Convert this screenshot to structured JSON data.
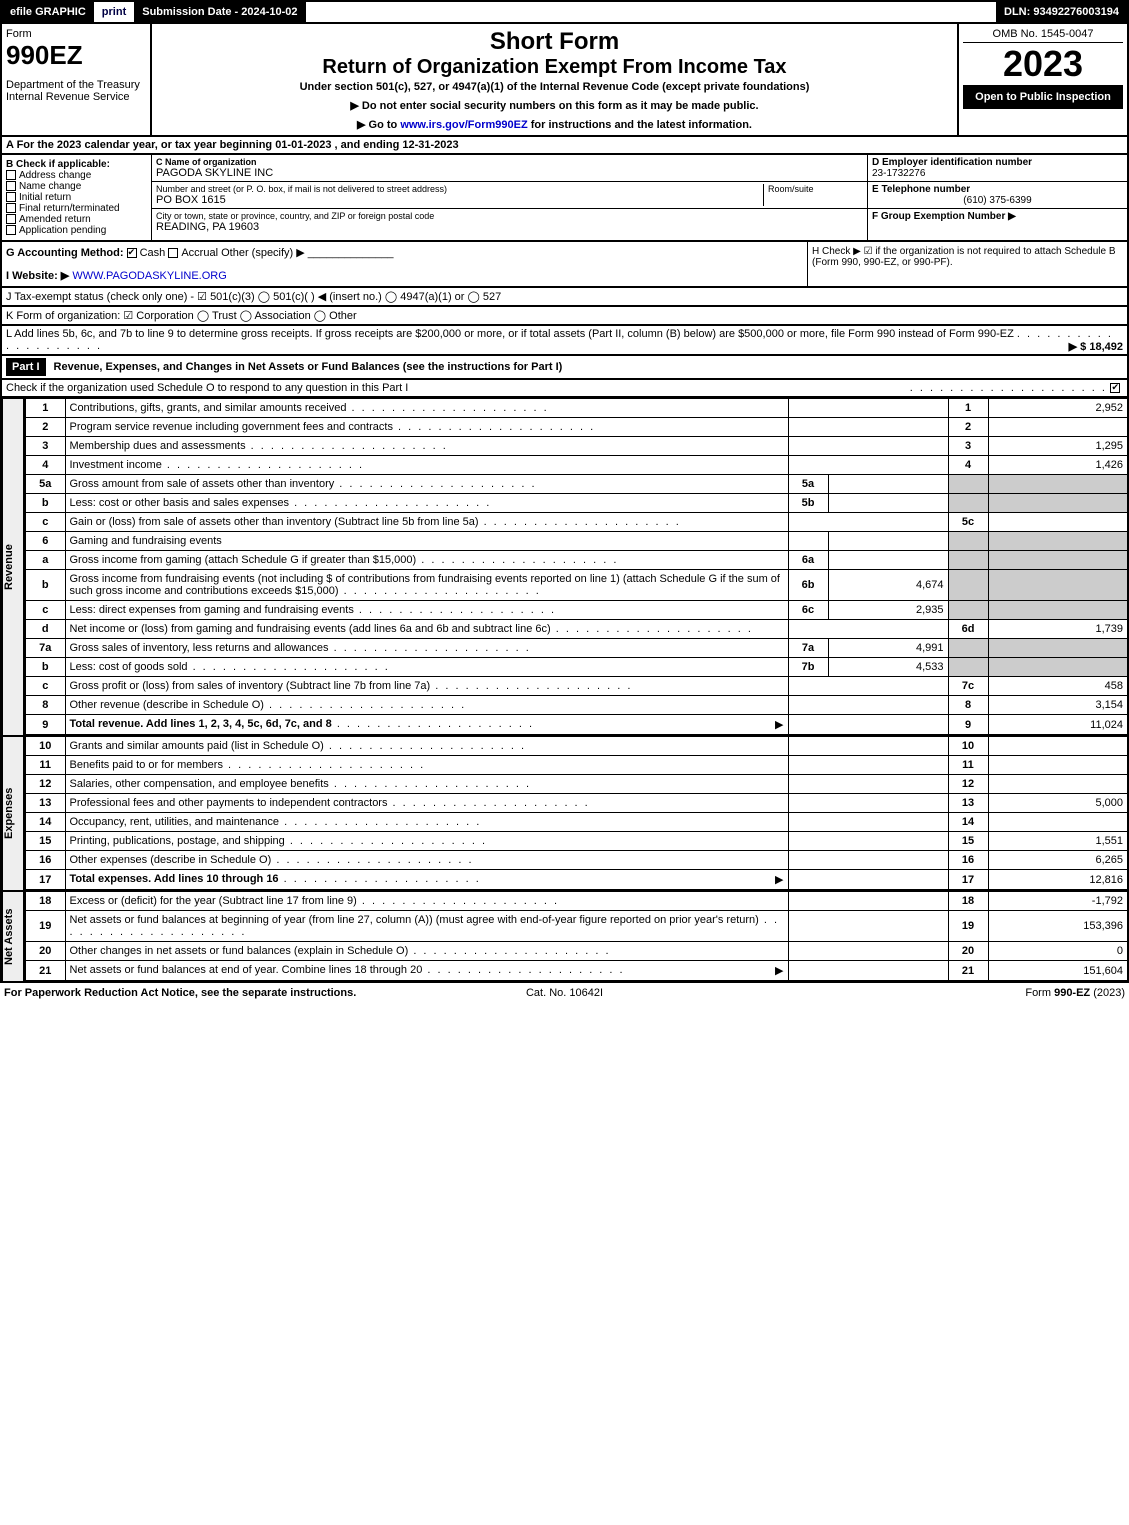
{
  "topbar": {
    "efile": "efile GRAPHIC",
    "print": "print",
    "submission": "Submission Date - 2024-10-02",
    "dln": "DLN: 93492276003194"
  },
  "header": {
    "form": "Form",
    "formNo": "990EZ",
    "dept1": "Department of the Treasury",
    "dept2": "Internal Revenue Service",
    "title1": "Short Form",
    "title2": "Return of Organization Exempt From Income Tax",
    "sub": "Under section 501(c), 527, or 4947(a)(1) of the Internal Revenue Code (except private foundations)",
    "note1": "▶ Do not enter social security numbers on this form as it may be made public.",
    "note2": "▶ Go to www.irs.gov/Form990EZ for instructions and the latest information.",
    "omb": "OMB No. 1545-0047",
    "year": "2023",
    "open": "Open to Public Inspection"
  },
  "sectionA": "A  For the 2023 calendar year, or tax year beginning 01-01-2023 , and ending 12-31-2023",
  "B": {
    "label": "B  Check if applicable:",
    "opts": [
      "Address change",
      "Name change",
      "Initial return",
      "Final return/terminated",
      "Amended return",
      "Application pending"
    ]
  },
  "C": {
    "nameLabel": "C Name of organization",
    "name": "PAGODA SKYLINE INC",
    "addrLabel": "Number and street (or P. O. box, if mail is not delivered to street address)",
    "roomLabel": "Room/suite",
    "addr": "PO BOX 1615",
    "cityLabel": "City or town, state or province, country, and ZIP or foreign postal code",
    "city": "READING, PA  19603"
  },
  "D": {
    "einLabel": "D Employer identification number",
    "ein": "23-1732276",
    "telLabel": "E Telephone number",
    "tel": "(610) 375-6399",
    "grpLabel": "F Group Exemption Number  ▶"
  },
  "G": {
    "label": "G Accounting Method:",
    "cash": "Cash",
    "accrual": "Accrual",
    "other": "Other (specify) ▶"
  },
  "H": "H  Check ▶ ☑ if the organization is not required to attach Schedule B (Form 990, 990-EZ, or 990-PF).",
  "I": "I Website: ▶ WWW.PAGODASKYLINE.ORG",
  "J": "J Tax-exempt status (check only one) - ☑ 501(c)(3)  ◯ 501(c)(  ) ◀ (insert no.)  ◯ 4947(a)(1) or  ◯ 527",
  "K": "K Form of organization:  ☑ Corporation  ◯ Trust  ◯ Association  ◯ Other",
  "L": {
    "text": "L Add lines 5b, 6c, and 7b to line 9 to determine gross receipts. If gross receipts are $200,000 or more, or if total assets (Part II, column (B) below) are $500,000 or more, file Form 990 instead of Form 990-EZ",
    "amount": "▶ $ 18,492"
  },
  "partI": {
    "label": "Part I",
    "title": "Revenue, Expenses, and Changes in Net Assets or Fund Balances (see the instructions for Part I)",
    "check": "Check if the organization used Schedule O to respond to any question in this Part I"
  },
  "sides": {
    "revenue": "Revenue",
    "expenses": "Expenses",
    "netassets": "Net Assets"
  },
  "rows": {
    "1": {
      "n": "1",
      "d": "Contributions, gifts, grants, and similar amounts received",
      "ln": "1",
      "amt": "2,952"
    },
    "2": {
      "n": "2",
      "d": "Program service revenue including government fees and contracts",
      "ln": "2",
      "amt": ""
    },
    "3": {
      "n": "3",
      "d": "Membership dues and assessments",
      "ln": "3",
      "amt": "1,295"
    },
    "4": {
      "n": "4",
      "d": "Investment income",
      "ln": "4",
      "amt": "1,426"
    },
    "5a": {
      "n": "5a",
      "d": "Gross amount from sale of assets other than inventory",
      "sn": "5a",
      "sv": ""
    },
    "5b": {
      "n": "b",
      "d": "Less: cost or other basis and sales expenses",
      "sn": "5b",
      "sv": ""
    },
    "5c": {
      "n": "c",
      "d": "Gain or (loss) from sale of assets other than inventory (Subtract line 5b from line 5a)",
      "ln": "5c",
      "amt": ""
    },
    "6": {
      "n": "6",
      "d": "Gaming and fundraising events"
    },
    "6a": {
      "n": "a",
      "d": "Gross income from gaming (attach Schedule G if greater than $15,000)",
      "sn": "6a",
      "sv": ""
    },
    "6b": {
      "n": "b",
      "d": "Gross income from fundraising events (not including $                  of contributions from fundraising events reported on line 1) (attach Schedule G if the sum of such gross income and contributions exceeds $15,000)",
      "sn": "6b",
      "sv": "4,674"
    },
    "6c": {
      "n": "c",
      "d": "Less: direct expenses from gaming and fundraising events",
      "sn": "6c",
      "sv": "2,935"
    },
    "6d": {
      "n": "d",
      "d": "Net income or (loss) from gaming and fundraising events (add lines 6a and 6b and subtract line 6c)",
      "ln": "6d",
      "amt": "1,739"
    },
    "7a": {
      "n": "7a",
      "d": "Gross sales of inventory, less returns and allowances",
      "sn": "7a",
      "sv": "4,991"
    },
    "7b": {
      "n": "b",
      "d": "Less: cost of goods sold",
      "sn": "7b",
      "sv": "4,533"
    },
    "7c": {
      "n": "c",
      "d": "Gross profit or (loss) from sales of inventory (Subtract line 7b from line 7a)",
      "ln": "7c",
      "amt": "458"
    },
    "8": {
      "n": "8",
      "d": "Other revenue (describe in Schedule O)",
      "ln": "8",
      "amt": "3,154"
    },
    "9": {
      "n": "9",
      "d": "Total revenue. Add lines 1, 2, 3, 4, 5c, 6d, 7c, and 8",
      "ln": "9",
      "amt": "11,024",
      "arrow": "▶",
      "bold": true
    },
    "10": {
      "n": "10",
      "d": "Grants and similar amounts paid (list in Schedule O)",
      "ln": "10",
      "amt": ""
    },
    "11": {
      "n": "11",
      "d": "Benefits paid to or for members",
      "ln": "11",
      "amt": ""
    },
    "12": {
      "n": "12",
      "d": "Salaries, other compensation, and employee benefits",
      "ln": "12",
      "amt": ""
    },
    "13": {
      "n": "13",
      "d": "Professional fees and other payments to independent contractors",
      "ln": "13",
      "amt": "5,000"
    },
    "14": {
      "n": "14",
      "d": "Occupancy, rent, utilities, and maintenance",
      "ln": "14",
      "amt": ""
    },
    "15": {
      "n": "15",
      "d": "Printing, publications, postage, and shipping",
      "ln": "15",
      "amt": "1,551"
    },
    "16": {
      "n": "16",
      "d": "Other expenses (describe in Schedule O)",
      "ln": "16",
      "amt": "6,265"
    },
    "17": {
      "n": "17",
      "d": "Total expenses. Add lines 10 through 16",
      "ln": "17",
      "amt": "12,816",
      "arrow": "▶",
      "bold": true
    },
    "18": {
      "n": "18",
      "d": "Excess or (deficit) for the year (Subtract line 17 from line 9)",
      "ln": "18",
      "amt": "-1,792"
    },
    "19": {
      "n": "19",
      "d": "Net assets or fund balances at beginning of year (from line 27, column (A)) (must agree with end-of-year figure reported on prior year's return)",
      "ln": "19",
      "amt": "153,396"
    },
    "20": {
      "n": "20",
      "d": "Other changes in net assets or fund balances (explain in Schedule O)",
      "ln": "20",
      "amt": "0"
    },
    "21": {
      "n": "21",
      "d": "Net assets or fund balances at end of year. Combine lines 18 through 20",
      "ln": "21",
      "amt": "151,604",
      "arrow": "▶"
    }
  },
  "footer": {
    "left": "For Paperwork Reduction Act Notice, see the separate instructions.",
    "mid": "Cat. No. 10642I",
    "right": "Form 990-EZ (2023)"
  }
}
